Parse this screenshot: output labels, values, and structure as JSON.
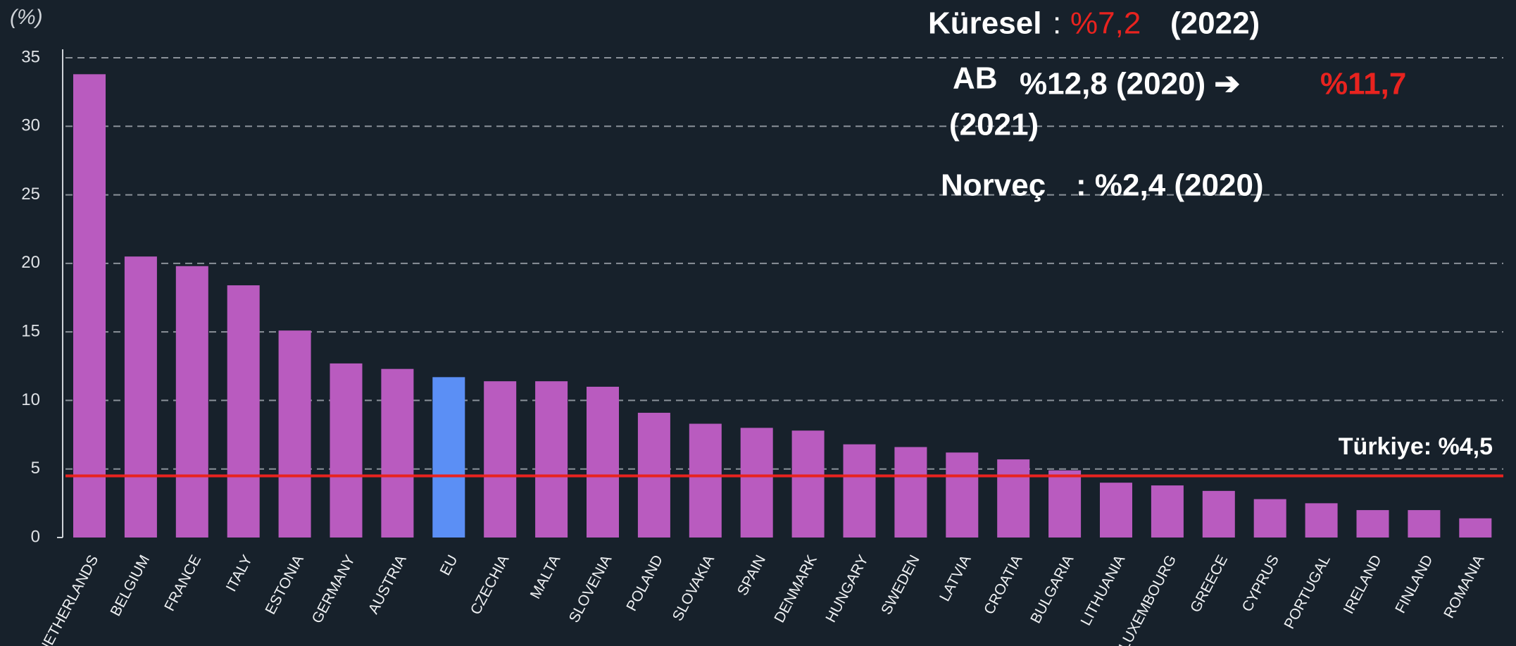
{
  "chart_data": {
    "type": "bar",
    "y_label": "(%)",
    "categories": [
      "NETHERLANDS",
      "BELGIUM",
      "FRANCE",
      "ITALY",
      "ESTONIA",
      "GERMANY",
      "AUSTRIA",
      "EU",
      "CZECHIA",
      "MALTA",
      "SLOVENIA",
      "POLAND",
      "SLOVAKIA",
      "SPAIN",
      "DENMARK",
      "HUNGARY",
      "SWEDEN",
      "LATVIA",
      "CROATIA",
      "BULGARIA",
      "LITHUANIA",
      "LUXEMBOURG",
      "GREECE",
      "CYPRUS",
      "PORTUGAL",
      "IRELAND",
      "FINLAND",
      "ROMANIA"
    ],
    "values": [
      33.8,
      20.5,
      19.8,
      18.4,
      15.1,
      12.7,
      12.3,
      11.7,
      11.4,
      11.4,
      11.0,
      9.1,
      8.3,
      8.0,
      7.8,
      6.8,
      6.6,
      6.2,
      5.7,
      4.9,
      4.0,
      3.8,
      3.4,
      2.8,
      2.5,
      2.0,
      2.0,
      1.4
    ],
    "colors": [
      "#b95bbf",
      "#b95bbf",
      "#b95bbf",
      "#b95bbf",
      "#b95bbf",
      "#b95bbf",
      "#b95bbf",
      "#5b8ff5",
      "#b95bbf",
      "#b95bbf",
      "#b95bbf",
      "#b95bbf",
      "#b95bbf",
      "#b95bbf",
      "#b95bbf",
      "#b95bbf",
      "#b95bbf",
      "#b95bbf",
      "#b95bbf",
      "#b95bbf",
      "#b95bbf",
      "#b95bbf",
      "#b95bbf",
      "#b95bbf",
      "#b95bbf",
      "#b95bbf",
      "#b95bbf",
      "#b95bbf"
    ],
    "ylim": [
      0,
      35
    ],
    "yticks": [
      0,
      5,
      10,
      15,
      20,
      25,
      30,
      35
    ],
    "grid": true,
    "reference_line": {
      "value": 4.5,
      "label": "Türkiye: %4,5",
      "color": "#e8231f"
    },
    "annotations": [
      {
        "text": "Küresel",
        "color": "#ffffff",
        "bold": true
      },
      {
        "text": ":",
        "color": "#ffffff",
        "bold": false
      },
      {
        "text": "%7,2",
        "color": "#e8231f",
        "bold": false
      },
      {
        "text": "(2022)",
        "color": "#ffffff",
        "bold": true
      },
      {
        "text": "AB",
        "color": "#ffffff",
        "bold": true
      },
      {
        "text": "%12,8 (2020) ➔",
        "color": "#ffffff",
        "bold": true
      },
      {
        "text": "%11,7",
        "color": "#e8231f",
        "bold": true
      },
      {
        "text": "(2021)",
        "color": "#ffffff",
        "bold": true
      },
      {
        "text": "Norveç",
        "color": "#ffffff",
        "bold": true
      },
      {
        "text": ": %2,4 (2020)",
        "color": "#ffffff",
        "bold": true
      }
    ]
  }
}
